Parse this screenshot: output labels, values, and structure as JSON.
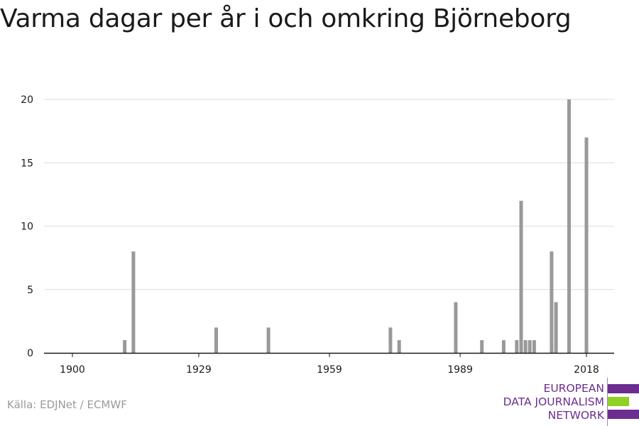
{
  "title": "Varma dagar per år i och omkring Björneborg",
  "source": "Källa: EDJNet / ECMWF",
  "logo": {
    "lines": [
      "EUROPEAN",
      "DATA JOURNALISM",
      "NETWORK"
    ],
    "bar_colors": [
      "#6b2d8f",
      "#8fd124",
      "#6b2d8f"
    ]
  },
  "colors": {
    "bar": "#999999",
    "grid": "#dcdcdc",
    "axis": "#1a1a1a"
  },
  "chart_data": {
    "type": "bar",
    "title": "Varma dagar per år i och omkring Björneborg",
    "xlabel": "",
    "ylabel": "",
    "xlim": [
      1900,
      2018
    ],
    "ylim": [
      0,
      20
    ],
    "x_ticks": [
      1900,
      1929,
      1959,
      1989,
      2018
    ],
    "y_ticks": [
      0,
      5,
      10,
      15,
      20
    ],
    "grid": true,
    "x": [
      1912,
      1914,
      1933,
      1945,
      1973,
      1975,
      1988,
      1994,
      1999,
      2002,
      2003,
      2004,
      2005,
      2006,
      2010,
      2011,
      2014,
      2018
    ],
    "values": [
      1,
      8,
      2,
      2,
      2,
      1,
      4,
      1,
      1,
      1,
      12,
      1,
      1,
      1,
      8,
      4,
      20,
      17
    ]
  }
}
